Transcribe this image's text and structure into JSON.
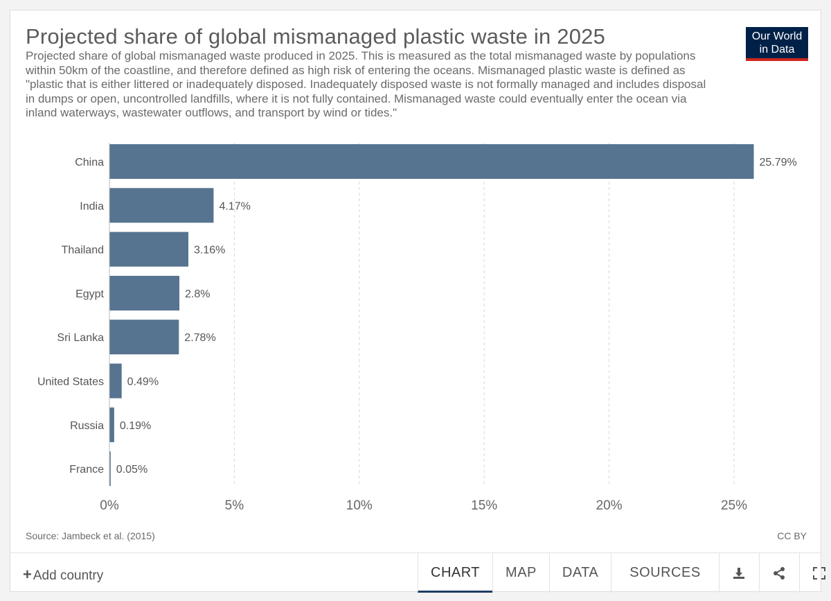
{
  "header": {
    "title": "Projected share of global mismanaged plastic waste in 2025",
    "subtitle": "Projected share of global mismanaged waste produced in 2025. This is measured as the total mismanaged waste by populations within 50km of the coastline, and therefore defined as high risk of entering the oceans. Mismanaged plastic waste is defined as \"plastic that is either littered or inadequately disposed. Inadequately disposed waste is not formally managed and includes disposal in dumps or open, uncontrolled landfills, where it is not fully contained. Mismanaged waste could eventually enter the ocean via inland waterways, wastewater outflows, and transport by wind or tides.\"",
    "logo_line1": "Our World",
    "logo_line2": "in Data"
  },
  "colors": {
    "bar": "#56738f",
    "grid": "#d6d6d6",
    "logo_bg": "#002147",
    "logo_accent": "#ce261e"
  },
  "chart_data": {
    "type": "bar",
    "orientation": "horizontal",
    "categories": [
      "China",
      "India",
      "Thailand",
      "Egypt",
      "Sri Lanka",
      "United States",
      "Russia",
      "France"
    ],
    "values": [
      25.79,
      4.17,
      3.16,
      2.8,
      2.78,
      0.49,
      0.19,
      0.05
    ],
    "value_labels": [
      "25.79%",
      "4.17%",
      "3.16%",
      "2.8%",
      "2.78%",
      "0.49%",
      "0.19%",
      "0.05%"
    ],
    "xlim": [
      0,
      26
    ],
    "xticks": [
      0,
      5,
      10,
      15,
      20,
      25
    ],
    "xtick_labels": [
      "0%",
      "5%",
      "10%",
      "15%",
      "20%",
      "25%"
    ],
    "grid": "vertical-dashed"
  },
  "footer": {
    "source": "Source: Jambeck et al. (2015)",
    "license": "CC BY"
  },
  "controls": {
    "add_country": "Add country",
    "add_icon": "+",
    "tabs": [
      "CHART",
      "MAP",
      "DATA",
      "SOURCES"
    ],
    "active_tab": "CHART",
    "icons": [
      "download-icon",
      "share-icon",
      "fullscreen-icon"
    ]
  }
}
